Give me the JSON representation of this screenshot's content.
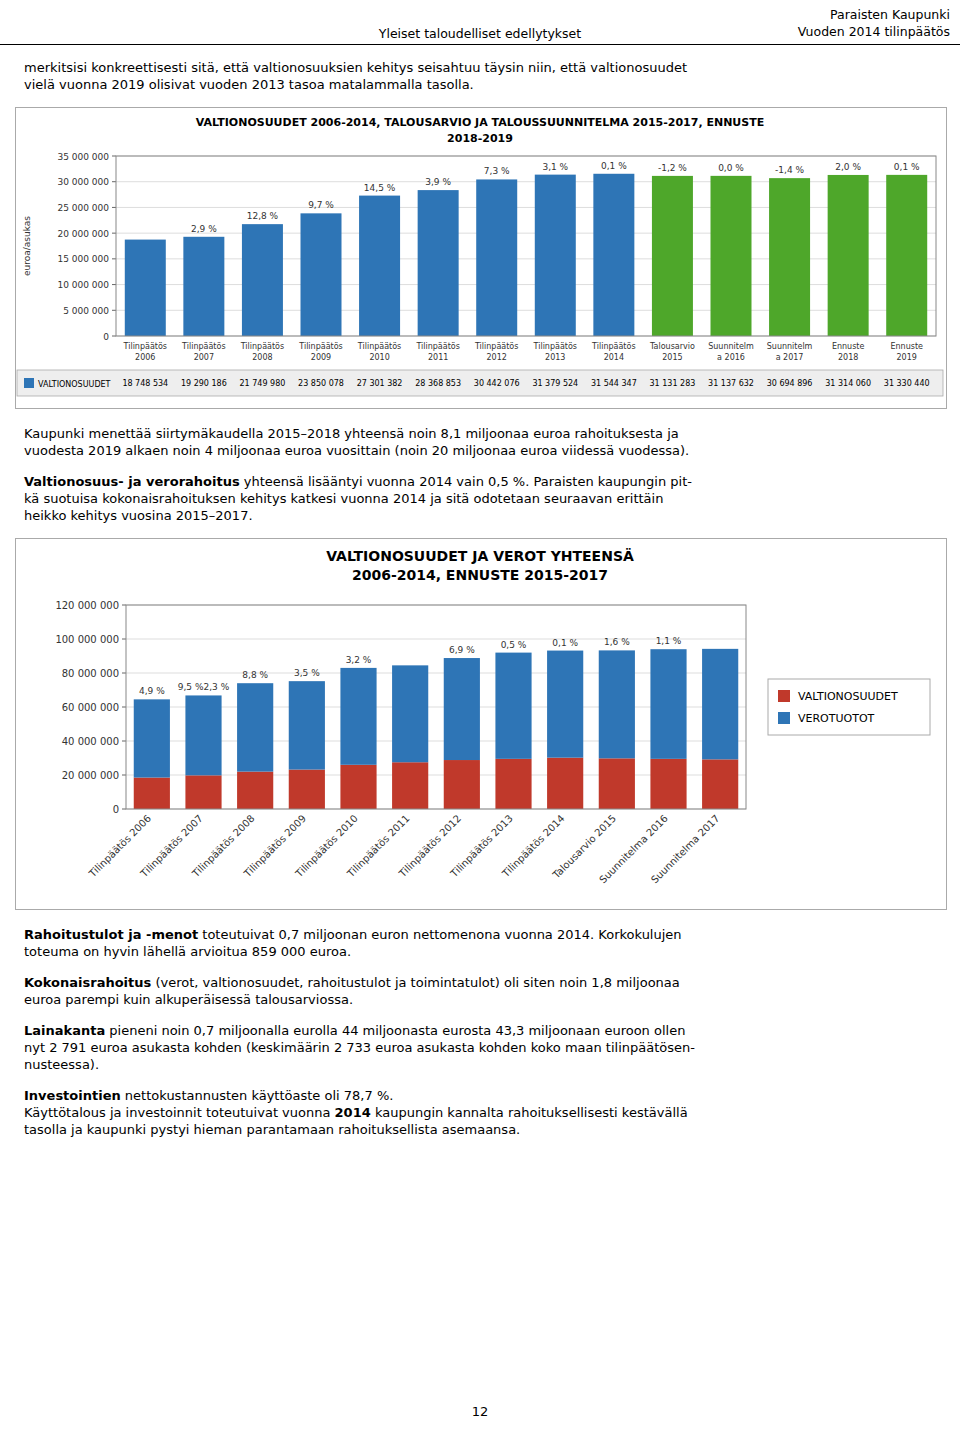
{
  "page": {
    "header_center": "Yleiset taloudelliset edellytykset",
    "header_right": "Paraisten Kaupunki\nVuoden 2014 tilinpäätös",
    "intro": [
      {
        "runs": [
          {
            "text": "merkitsisi konkreettisesti sitä, että valtionosuuksien kehitys seisahtuu täysin niin, että valtionosuudet\nvielä vuonna 2019 olisivat vuoden 2013 tasoa matalammalla tasolla."
          }
        ]
      }
    ],
    "middle": [
      {
        "runs": [
          {
            "text": "Kaupunki menettää siirtymäkaudella 2015–2018 yhteensä noin 8,1 miljoonaa euroa rahoituksesta ja\nvuodesta 2019 alkaen noin 4 miljoonaa euroa vuosittain (noin 20 miljoonaa euroa viidessä vuodessa)."
          }
        ]
      },
      {
        "runs": [
          {
            "text": "Valtionosuus- ja verorahoitus",
            "bold": true
          },
          {
            "text": " yhteensä lisääntyi vuonna 2014 vain 0,5 %. Paraisten kaupungin pit-\nkä suotuisa kokonaisrahoituksen kehitys katkesi vuonna 2014 ja sitä odotetaan seuraavan erittäin\nheikko kehitys vuosina 2015–2017."
          }
        ]
      }
    ],
    "closing": [
      {
        "runs": [
          {
            "text": "Rahoitustulot ja -menot",
            "bold": true
          },
          {
            "text": " toteutuivat 0,7 miljoonan euron nettomenona vuonna 2014. Korkokulujen\ntoteuma on hyvin lähellä arvioitua 859 000 euroa."
          }
        ]
      },
      {
        "runs": [
          {
            "text": "Kokonaisrahoitus",
            "bold": true
          },
          {
            "text": " (verot, valtionosuudet, rahoitustulot ja toimintatulot) oli siten noin 1,8 miljoonaa\neuroa parempi kuin alkuperäisessä talousarviossa."
          }
        ]
      },
      {
        "runs": [
          {
            "text": "Lainakanta",
            "bold": true
          },
          {
            "text": " pieneni noin 0,7 miljoonalla eurolla 44 miljoonasta eurosta 43,3 miljoonaan euroon ollen\nnyt 2 791 euroa asukasta kohden (keskimäärin 2 733 euroa asukasta kohden koko maan tilinpäätösen-\nnusteessa)."
          }
        ]
      },
      {
        "runs": [
          {
            "text": "Investointien",
            "bold": true
          },
          {
            "text": " nettokustannusten käyttöaste oli 78,7 %."
          },
          {
            "text": "\nKäyttötalous ja investoinnit toteutuivat vuonna "
          },
          {
            "text": "2014",
            "bold": true
          },
          {
            "text": " kaupungin kannalta rahoituksellisesti kestävällä"
          },
          {
            "text": "\ntasolla ja kaupunki pystyi hieman parantamaan rahoituksellista asemaansa."
          }
        ]
      }
    ],
    "page_number": "12"
  },
  "chart_data": [
    {
      "type": "bar",
      "title": "VALTIONOSUUDET 2006-2014, TALOUSARVIO JA TALOUSSUUNNITELMA 2015-2017, ENNUSTE",
      "subtitle": "2018-2019",
      "ylabel": "euroa/asukas",
      "categories": [
        "Tilinpäätös\n2006",
        "Tilinpäätös\n2007",
        "Tilinpäätös\n2008",
        "Tilinpäätös\n2009",
        "Tilinpäätös\n2010",
        "Tilinpäätös\n2011",
        "Tilinpäätös\n2012",
        "Tilinpäätös\n2013",
        "Tilinpäätös\n2014",
        "Talousarvio\n2015",
        "Suunnitelm\na 2016",
        "Suunnitelm\na 2017",
        "Ennuste\n2018",
        "Ennuste\n2019"
      ],
      "series": [
        {
          "name": "VALTIONOSUUDET",
          "color": "#2E75B6",
          "colors": [
            "#2E75B6",
            "#2E75B6",
            "#2E75B6",
            "#2E75B6",
            "#2E75B6",
            "#2E75B6",
            "#2E75B6",
            "#2E75B6",
            "#2E75B6",
            "#4EA72A",
            "#4EA72A",
            "#4EA72A",
            "#4EA72A",
            "#4EA72A"
          ],
          "values": [
            18748534,
            19290186,
            21749980,
            23850078,
            27301382,
            28368853,
            30442076,
            31379524,
            31544347,
            31131283,
            31137632,
            30694896,
            31314060,
            31330440
          ],
          "value_labels": [
            "18 748 534",
            "19 290 186",
            "21 749 980",
            "23 850 078",
            "27 301 382",
            "28 368 853",
            "30 442 076",
            "31 379 524",
            "31 544 347",
            "31 131 283",
            "31 137 632",
            "30 694 896",
            "31 314 060",
            "31 330 440"
          ]
        }
      ],
      "annotations": [
        null,
        "2,9 %",
        "12,8 %",
        "9,7 %",
        "14,5 %",
        "3,9 %",
        "7,3 %",
        "3,1 %",
        "0,1 %",
        "-1,2 %",
        "0,0 %",
        "-1,4 %",
        "2,0 %",
        "0,1 %"
      ],
      "ylim": [
        0,
        35000000
      ],
      "yticks": [
        0,
        {
          "value": 5000000,
          "label": "5 000 000"
        },
        {
          "value": 10000000,
          "label": "10 000 000"
        },
        {
          "value": 15000000,
          "label": "15 000 000"
        },
        {
          "value": 20000000,
          "label": "20 000 000"
        },
        {
          "value": 25000000,
          "label": "25 000 000"
        },
        {
          "value": 30000000,
          "label": "30 000 000"
        },
        {
          "value": 35000000,
          "label": "35 000 000"
        }
      ],
      "grid": true,
      "legend": "bottom"
    },
    {
      "type": "bar",
      "stacked": true,
      "title": "VALTIONOSUUDET JA VEROT YHTEENSÄ",
      "subtitle": "2006-2014, ENNUSTE 2015-2017",
      "categories": [
        "Tilinpäätös 2006",
        "Tilinpäätös 2007",
        "Tilinpäätös 2008",
        "Tilinpäätös 2009",
        "Tilinpäätös 2010",
        "Tilinpäätös 2011",
        "Tilinpäätös 2012",
        "Tilinpäätös 2013",
        "Tilinpäätös 2014",
        "Talousarvio 2015",
        "Suunnitelma 2016",
        "Suunnitelma 2017"
      ],
      "series": [
        {
          "name": "VALTIONOSUUDET",
          "color": "#C0392B",
          "values": [
            18500000,
            19800000,
            22000000,
            23200000,
            26000000,
            27500000,
            28800000,
            29500000,
            30200000,
            29800000,
            29500000,
            29200000
          ]
        },
        {
          "name": "VEROTUOTOT",
          "color": "#2E75B6",
          "values": [
            46000000,
            47000000,
            52000000,
            52000000,
            57000000,
            57000000,
            60000000,
            62500000,
            63000000,
            63500000,
            64500000,
            65000000
          ]
        }
      ],
      "annotations": [
        "4,9 %",
        "9,5 %2,3 %",
        "8,8 %",
        "3,5 %",
        "3,2 %",
        null,
        "6,9 %",
        "0,5 %",
        "0,1 %",
        "1,6 %",
        "1,1 %",
        null
      ],
      "ylim": [
        0,
        120000000
      ],
      "yticks": [
        0,
        {
          "value": 20000000,
          "label": "20 000 000"
        },
        {
          "value": 40000000,
          "label": "40 000 000"
        },
        {
          "value": 60000000,
          "label": "60 000 000"
        },
        {
          "value": 80000000,
          "label": "80 000 000"
        },
        {
          "value": 100000000,
          "label": "100 000 000"
        },
        {
          "value": 120000000,
          "label": "120 000 000"
        }
      ],
      "grid": true,
      "legend": "right"
    }
  ]
}
